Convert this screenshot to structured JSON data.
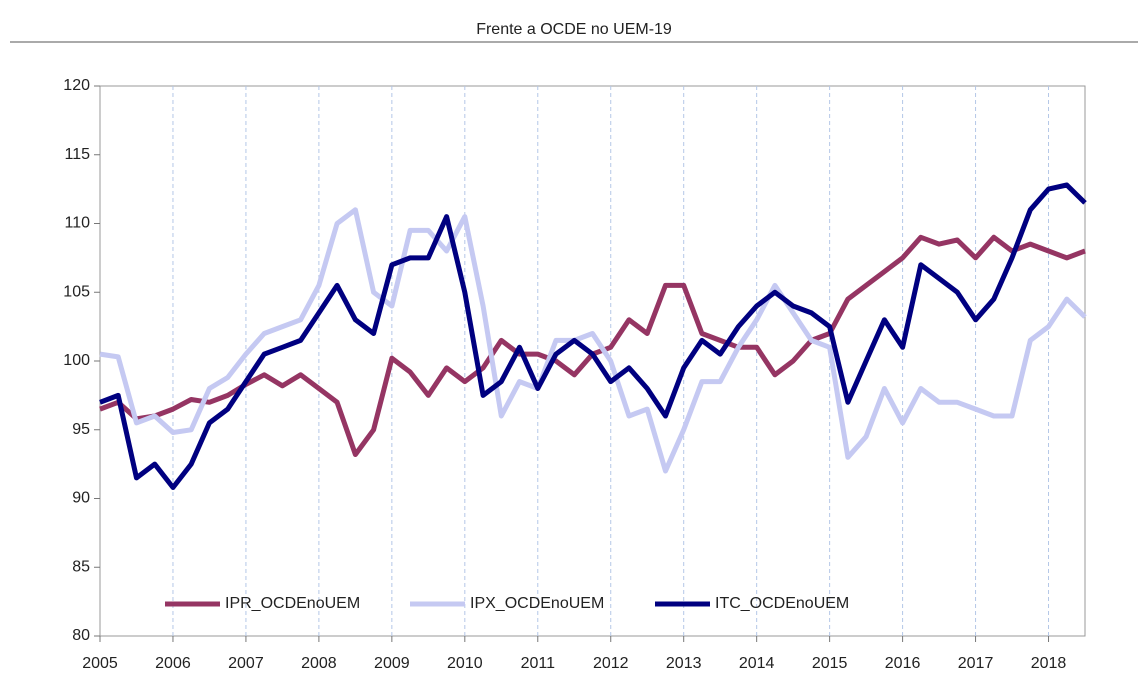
{
  "chart_data": {
    "type": "line",
    "title": "Frente a OCDE no UEM-19",
    "x": [
      2005,
      2005.25,
      2005.5,
      2005.75,
      2006,
      2006.25,
      2006.5,
      2006.75,
      2007,
      2007.25,
      2007.5,
      2007.75,
      2008,
      2008.25,
      2008.5,
      2008.75,
      2009,
      2009.25,
      2009.5,
      2009.75,
      2010,
      2010.25,
      2010.5,
      2010.75,
      2011,
      2011.25,
      2011.5,
      2011.75,
      2012,
      2012.25,
      2012.5,
      2012.75,
      2013,
      2013.25,
      2013.5,
      2013.75,
      2014,
      2014.25,
      2014.5,
      2014.75,
      2015,
      2015.25,
      2015.5,
      2015.75,
      2016,
      2016.25,
      2016.5,
      2016.75,
      2017,
      2017.25,
      2017.5,
      2017.75,
      2018,
      2018.25,
      2018.5
    ],
    "series": [
      {
        "name": "IPR_OCDEnoUEM",
        "color": "#953563",
        "values": [
          96.5,
          97,
          95.8,
          96,
          96.5,
          97.2,
          97,
          97.5,
          98.3,
          99,
          98.2,
          99,
          98,
          97,
          93.2,
          95,
          100.2,
          99.2,
          97.5,
          99.5,
          98.5,
          99.5,
          101.5,
          100.5,
          100.5,
          100,
          99,
          100.5,
          101,
          103,
          102,
          105.5,
          105.5,
          102,
          101.5,
          101,
          101,
          99,
          100,
          101.5,
          102,
          104.5,
          105.5,
          106.5,
          107.5,
          109,
          108.5,
          108.8,
          107.5,
          109,
          108,
          108.5,
          108,
          107.5,
          108
        ]
      },
      {
        "name": "IPX_OCDEnoUEM",
        "color": "#c5c9f2",
        "values": [
          100.5,
          100.3,
          95.5,
          96,
          94.8,
          95,
          98,
          98.8,
          100.5,
          102,
          102.5,
          103,
          105.5,
          110,
          111,
          105,
          104,
          109.5,
          109.5,
          108,
          110.5,
          104,
          96,
          98.5,
          98,
          101.5,
          101.5,
          102,
          100,
          96,
          96.5,
          92,
          95,
          98.5,
          98.5,
          101,
          103,
          105.5,
          103.5,
          101.5,
          101,
          93,
          94.5,
          98,
          95.5,
          98,
          97,
          97,
          96.5,
          96,
          96,
          101.5,
          102.5,
          104.5,
          103.2
        ]
      },
      {
        "name": "ITC_OCDEnoUEM",
        "color": "#000080",
        "values": [
          97,
          97.5,
          91.5,
          92.5,
          90.8,
          92.5,
          95.5,
          96.5,
          98.5,
          100.5,
          101,
          101.5,
          103.5,
          105.5,
          103,
          102,
          107,
          107.5,
          107.5,
          110.5,
          105,
          97.5,
          98.5,
          101,
          98,
          100.5,
          101.5,
          100.5,
          98.5,
          99.5,
          98,
          96,
          99.5,
          101.5,
          100.5,
          102.5,
          104,
          105,
          104,
          103.5,
          102.5,
          97,
          100,
          103,
          101,
          107,
          106,
          105,
          103,
          104.5,
          107.5,
          111,
          112.5,
          112.8,
          111.5
        ]
      }
    ],
    "xlim": [
      2005,
      2018.5
    ],
    "xticks": [
      2005,
      2006,
      2007,
      2008,
      2009,
      2010,
      2011,
      2012,
      2013,
      2014,
      2015,
      2016,
      2017,
      2018
    ],
    "ylim": [
      80,
      120
    ],
    "yticks": [
      80,
      85,
      90,
      95,
      100,
      105,
      110,
      115,
      120
    ],
    "grid": "x",
    "legend": "lower center"
  }
}
